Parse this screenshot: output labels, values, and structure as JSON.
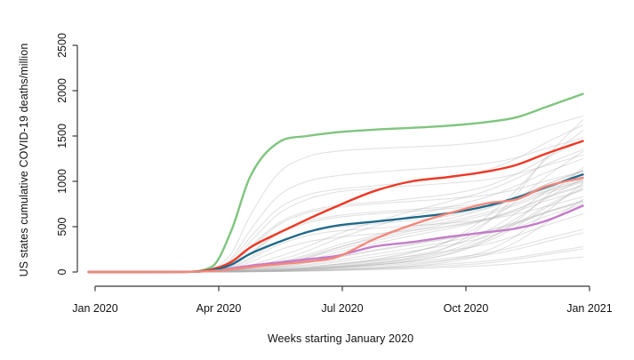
{
  "figure": {
    "background": "#ffffff",
    "axis_color": "#383838",
    "text_color": "#111111"
  },
  "chart_data": {
    "type": "line",
    "title": "",
    "xlabel": "Weeks starting January 2020",
    "ylabel": "US states cumulative COVID-19 deaths/million",
    "ylim": [
      0,
      2500
    ],
    "y_ticks": [
      0,
      500,
      1000,
      1500,
      2000,
      2500
    ],
    "x_ticks": [
      {
        "week": 0.7,
        "label": "Jan 2020"
      },
      {
        "week": 13.7,
        "label": "Apr 2020"
      },
      {
        "week": 26.7,
        "label": "Jul 2020"
      },
      {
        "week": 39.7,
        "label": "Oct 2020"
      },
      {
        "week": 52.7,
        "label": "Jan 2021"
      }
    ],
    "grid": false,
    "legend": "none",
    "sample_weeks": [
      0,
      10,
      13,
      15,
      17,
      20,
      23,
      26,
      30,
      34,
      38,
      42,
      45,
      48,
      52
    ],
    "highlighted_series": [
      {
        "name": "state-green",
        "color": "#7EC57E",
        "values": [
          0,
          2,
          60,
          450,
          1050,
          1430,
          1500,
          1540,
          1570,
          1590,
          1615,
          1655,
          1705,
          1815,
          1965
        ]
      },
      {
        "name": "state-red",
        "color": "#EF3724",
        "values": [
          0,
          1,
          30,
          110,
          270,
          430,
          580,
          720,
          890,
          1000,
          1050,
          1110,
          1180,
          1300,
          1445
        ]
      },
      {
        "name": "state-purple",
        "color": "#C47BC9",
        "values": [
          0,
          1,
          14,
          40,
          70,
          105,
          140,
          175,
          280,
          330,
          390,
          440,
          480,
          560,
          730
        ]
      },
      {
        "name": "state-teal",
        "color": "#1E698A",
        "values": [
          0,
          1,
          20,
          80,
          200,
          330,
          440,
          510,
          555,
          600,
          650,
          730,
          820,
          930,
          1075
        ]
      },
      {
        "name": "state-salmon",
        "color": "#F4887B",
        "values": [
          0,
          1,
          12,
          30,
          55,
          85,
          115,
          160,
          360,
          520,
          650,
          760,
          800,
          940,
          1040
        ]
      }
    ],
    "background_series_style": {
      "color": "#b0b0b0",
      "opacity": 0.38,
      "width": 1.1
    },
    "background_series": [
      {
        "values": [
          0,
          1,
          40,
          200,
          620,
          1090,
          1270,
          1330,
          1360,
          1380,
          1400,
          1440,
          1500,
          1600,
          1720
        ]
      },
      {
        "values": [
          0,
          1,
          30,
          150,
          460,
          840,
          1000,
          1060,
          1100,
          1130,
          1160,
          1200,
          1260,
          1360,
          1480
        ]
      },
      {
        "values": [
          0,
          1,
          20,
          100,
          330,
          640,
          800,
          880,
          920,
          950,
          980,
          1020,
          1080,
          1170,
          1290
        ]
      },
      {
        "values": [
          0,
          0,
          10,
          60,
          200,
          420,
          540,
          600,
          640,
          670,
          700,
          740,
          800,
          890,
          1000
        ]
      },
      {
        "values": [
          0,
          0,
          8,
          40,
          140,
          300,
          400,
          450,
          480,
          510,
          540,
          580,
          640,
          720,
          830
        ]
      },
      {
        "values": [
          0,
          0,
          5,
          15,
          40,
          90,
          160,
          260,
          380,
          480,
          560,
          660,
          760,
          880,
          1010
        ]
      },
      {
        "values": [
          0,
          0,
          4,
          12,
          30,
          70,
          130,
          210,
          310,
          400,
          480,
          580,
          690,
          820,
          960
        ]
      },
      {
        "values": [
          0,
          0,
          3,
          10,
          25,
          55,
          100,
          160,
          240,
          310,
          380,
          460,
          550,
          660,
          780
        ]
      },
      {
        "values": [
          0,
          0,
          2,
          5,
          10,
          20,
          35,
          60,
          100,
          160,
          280,
          550,
          850,
          1250,
          1680
        ]
      },
      {
        "values": [
          0,
          0,
          2,
          5,
          12,
          25,
          45,
          80,
          130,
          210,
          350,
          620,
          900,
          1230,
          1560
        ]
      },
      {
        "values": [
          0,
          0,
          2,
          6,
          14,
          28,
          50,
          85,
          140,
          220,
          340,
          560,
          780,
          1040,
          1330
        ]
      },
      {
        "values": [
          0,
          0,
          1,
          4,
          10,
          22,
          40,
          70,
          115,
          180,
          280,
          460,
          650,
          880,
          1120
        ]
      },
      {
        "values": [
          0,
          0,
          1,
          3,
          8,
          18,
          32,
          55,
          90,
          140,
          220,
          370,
          530,
          720,
          930
        ]
      },
      {
        "values": [
          0,
          0,
          1,
          3,
          7,
          14,
          25,
          40,
          65,
          95,
          135,
          190,
          250,
          330,
          430
        ]
      },
      {
        "values": [
          0,
          0,
          1,
          2,
          5,
          10,
          17,
          27,
          42,
          62,
          88,
          122,
          160,
          210,
          280
        ]
      },
      {
        "values": [
          0,
          0,
          0,
          1,
          3,
          6,
          10,
          16,
          25,
          37,
          52,
          72,
          95,
          125,
          165
        ]
      },
      {
        "values": [
          0,
          1,
          25,
          130,
          380,
          700,
          850,
          910,
          950,
          990,
          1040,
          1130,
          1250,
          1420,
          1620
        ]
      },
      {
        "values": [
          0,
          0,
          6,
          20,
          55,
          130,
          230,
          360,
          500,
          620,
          720,
          830,
          950,
          1090,
          1250
        ]
      },
      {
        "values": [
          0,
          0,
          10,
          50,
          160,
          330,
          430,
          490,
          530,
          570,
          620,
          710,
          820,
          960,
          1120
        ]
      },
      {
        "values": [
          0,
          0,
          8,
          35,
          110,
          240,
          330,
          380,
          420,
          460,
          510,
          590,
          690,
          810,
          950
        ]
      },
      {
        "values": [
          0,
          0,
          1,
          3,
          8,
          16,
          30,
          50,
          80,
          125,
          200,
          340,
          500,
          700,
          920
        ]
      },
      {
        "values": [
          0,
          0,
          5,
          18,
          50,
          110,
          190,
          290,
          400,
          500,
          590,
          700,
          820,
          960,
          1110
        ]
      },
      {
        "values": [
          0,
          0,
          2,
          6,
          15,
          32,
          55,
          85,
          125,
          175,
          235,
          310,
          400,
          510,
          640
        ]
      },
      {
        "values": [
          0,
          0,
          1,
          2,
          5,
          10,
          18,
          30,
          50,
          80,
          130,
          240,
          400,
          650,
          980
        ]
      },
      {
        "values": [
          0,
          0,
          15,
          80,
          260,
          520,
          650,
          710,
          750,
          780,
          810,
          850,
          910,
          1000,
          1110
        ]
      },
      {
        "values": [
          0,
          0,
          4,
          14,
          40,
          90,
          155,
          240,
          340,
          430,
          500,
          580,
          670,
          780,
          900
        ]
      },
      {
        "values": [
          0,
          0,
          3,
          10,
          28,
          60,
          105,
          160,
          230,
          300,
          370,
          450,
          540,
          650,
          770
        ]
      },
      {
        "values": [
          0,
          0,
          2,
          4,
          9,
          19,
          34,
          58,
          95,
          150,
          240,
          410,
          590,
          800,
          1030
        ]
      },
      {
        "values": [
          0,
          0,
          1,
          4,
          9,
          19,
          33,
          52,
          78,
          112,
          155,
          210,
          280,
          365,
          470
        ]
      },
      {
        "values": [
          0,
          0,
          5,
          16,
          45,
          100,
          175,
          265,
          365,
          455,
          540,
          635,
          740,
          860,
          990
        ]
      },
      {
        "values": [
          0,
          0,
          1,
          3,
          7,
          15,
          27,
          45,
          75,
          120,
          200,
          360,
          560,
          820,
          1150
        ]
      },
      {
        "values": [
          0,
          1,
          18,
          90,
          280,
          540,
          670,
          730,
          770,
          810,
          860,
          950,
          1080,
          1250,
          1450
        ]
      },
      {
        "values": [
          0,
          0,
          2,
          7,
          18,
          40,
          70,
          110,
          165,
          230,
          300,
          390,
          490,
          610,
          750
        ]
      },
      {
        "values": [
          0,
          0,
          1,
          2,
          4,
          8,
          14,
          24,
          40,
          65,
          110,
          200,
          330,
          530,
          800
        ]
      },
      {
        "values": [
          0,
          0,
          12,
          65,
          210,
          430,
          560,
          620,
          660,
          690,
          720,
          760,
          820,
          910,
          1020
        ]
      },
      {
        "values": [
          0,
          0,
          3,
          8,
          20,
          45,
          80,
          130,
          195,
          265,
          340,
          430,
          530,
          650,
          790
        ]
      },
      {
        "values": [
          0,
          0,
          1,
          1,
          3,
          7,
          12,
          20,
          32,
          48,
          70,
          100,
          140,
          190,
          255
        ]
      },
      {
        "values": [
          0,
          0,
          6,
          25,
          75,
          170,
          280,
          410,
          550,
          670,
          780,
          900,
          1030,
          1180,
          1350
        ]
      }
    ]
  }
}
